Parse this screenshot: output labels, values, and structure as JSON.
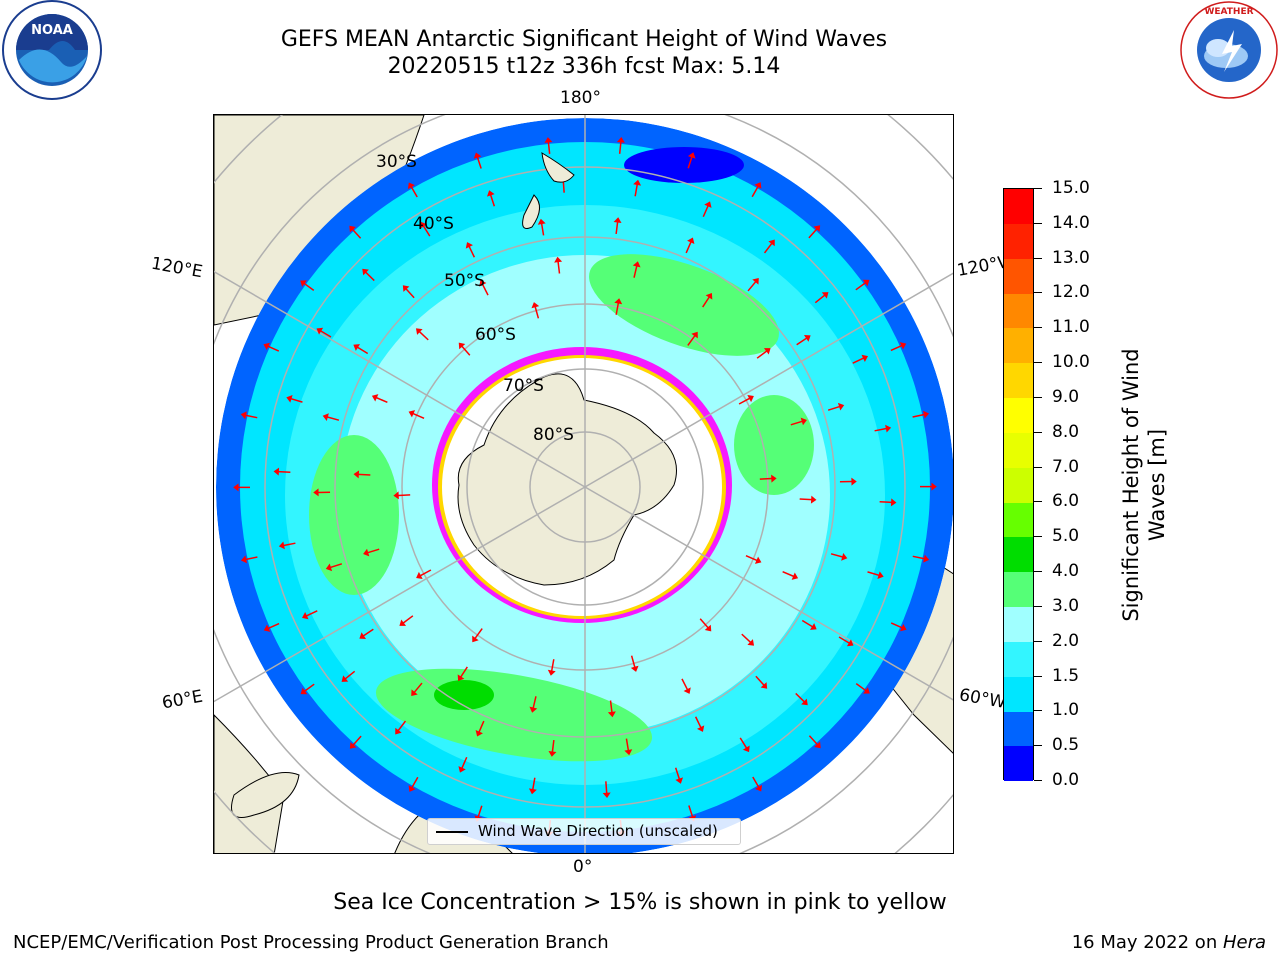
{
  "title": {
    "line1": "GEFS MEAN Antarctic Significant Height of Wind Waves",
    "line2": "20220515 t12z 336h fcst   Max: 5.14"
  },
  "logos": {
    "left": {
      "icon": "noaa-logo",
      "text": "NOAA"
    },
    "right": {
      "icon": "national-weather-service-logo",
      "text": "NATIONAL WEATHER SERVICE"
    }
  },
  "map": {
    "projection": "south-polar-stereographic",
    "longitude_labels": {
      "top": "180°",
      "bottom": "0°",
      "left_upper": "120°E",
      "left_lower": "60°E",
      "right_upper": "120°W",
      "right_lower": "60°W"
    },
    "latitude_labels": [
      "30°S",
      "40°S",
      "50°S",
      "60°S",
      "70°S",
      "80°S"
    ],
    "legend_label": "Wind Wave Direction (unscaled)",
    "arrow_color": "#ff0000",
    "land_color": "#eeecd8",
    "sea_ice_colors": [
      "#ff00ff",
      "#ffd700"
    ]
  },
  "colorbar": {
    "label_line1": "Significant Height of Wind",
    "label_line2": "Waves [m]",
    "ticks": [
      "0.0",
      "0.5",
      "1.0",
      "1.5",
      "2.0",
      "3.0",
      "4.0",
      "5.0",
      "6.0",
      "7.0",
      "8.0",
      "9.0",
      "10.0",
      "11.0",
      "12.0",
      "13.0",
      "14.0",
      "15.0"
    ],
    "colors": [
      "#0000ff",
      "#0064ff",
      "#00e6ff",
      "#33f5ff",
      "#a0ffff",
      "#55ff77",
      "#00dd00",
      "#66ff00",
      "#ccff00",
      "#e8ff00",
      "#ffff00",
      "#ffd700",
      "#ffb000",
      "#ff8800",
      "#ff5500",
      "#ff2200",
      "#ff0000"
    ]
  },
  "subtitle": "Sea Ice Concentration > 15% is shown in pink to yellow",
  "footer": {
    "left": "NCEP/EMC/Verification Post Processing Product Generation Branch",
    "right_prefix": "16 May 2022 on ",
    "right_host": "Hera"
  }
}
